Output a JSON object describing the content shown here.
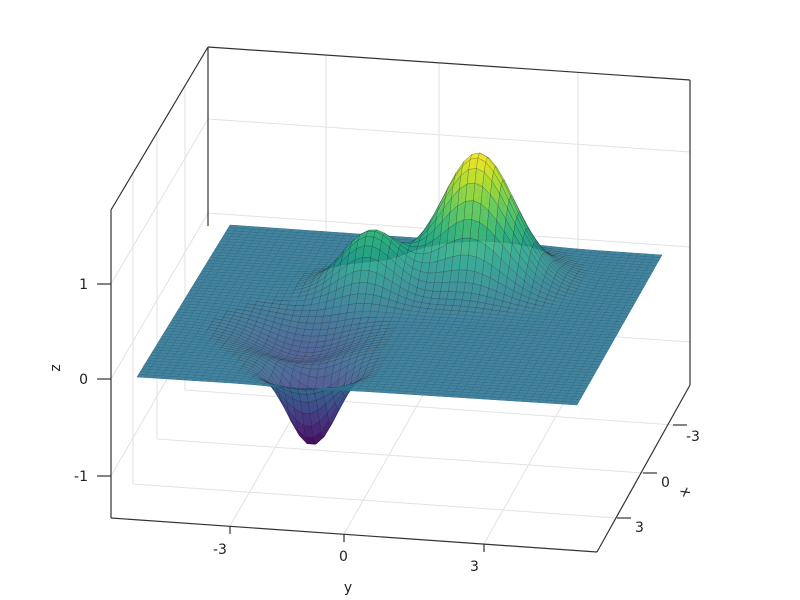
{
  "chart_data": {
    "type": "surface",
    "title": "",
    "xlabel": "x",
    "ylabel": "y",
    "zlabel": "z",
    "x_ticks": [
      "-3",
      "0",
      "3"
    ],
    "y_ticks": [
      "-3",
      "0",
      "3"
    ],
    "z_ticks": [
      "-1",
      "0",
      "1"
    ],
    "xlim": [
      -5.8,
      5.8
    ],
    "ylim": [
      -5.8,
      5.8
    ],
    "zlim": [
      -1.45,
      1.76
    ],
    "surface_domain": {
      "x": [
        -4.5,
        4.5
      ],
      "y": [
        -4.5,
        4.5
      ]
    },
    "colormap": "viridis",
    "features": [
      {
        "kind": "peak",
        "x": -2.4,
        "y": 1.1,
        "z": 1.4
      },
      {
        "kind": "peak",
        "x": -1.3,
        "y": -0.9,
        "z": 0.65
      },
      {
        "kind": "trough",
        "x": 3.1,
        "y": -1.2,
        "z": -0.85
      },
      {
        "kind": "dip",
        "x": 1.2,
        "y": -1.8,
        "z": -0.3
      }
    ],
    "grid": true,
    "legend": "none"
  }
}
